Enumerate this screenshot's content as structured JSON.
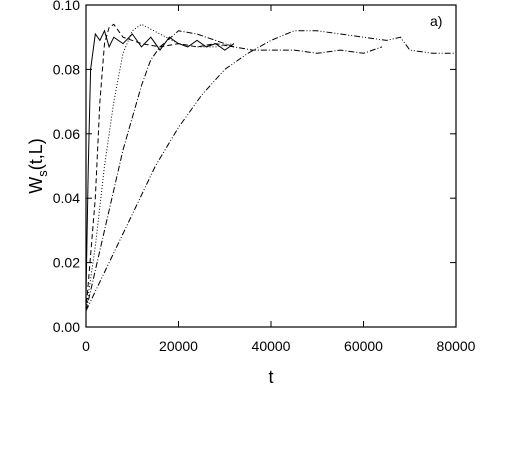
{
  "chart_data": {
    "type": "line",
    "annotation": "a)",
    "xlabel": "t",
    "ylabel": {
      "base": "W",
      "subscript": "s",
      "suffix": "(t,L)"
    },
    "xlim": [
      0,
      80000
    ],
    "xticks": [
      0,
      20000,
      40000,
      60000,
      80000
    ],
    "ylim": [
      0,
      0.1
    ],
    "yticks": [
      {
        "value": 0,
        "label": "0.00"
      },
      {
        "value": 0.02,
        "label": "0.02"
      },
      {
        "value": 0.04,
        "label": "0.04"
      },
      {
        "value": 0.06,
        "label": "0.06"
      },
      {
        "value": 0.08,
        "label": "0.08"
      },
      {
        "value": 0.1,
        "label": "0.10"
      }
    ],
    "series": [
      {
        "color": "#000000",
        "dash": "solid",
        "x": [
          0,
          500,
          1000,
          2000,
          3000,
          4000,
          5000,
          6000,
          8000,
          10000,
          12000,
          14000,
          16000,
          18000,
          20000,
          22000,
          24000,
          26000,
          28000,
          30000,
          32000
        ],
        "values": [
          0.01,
          0.05,
          0.08,
          0.091,
          0.089,
          0.092,
          0.087,
          0.09,
          0.088,
          0.091,
          0.087,
          0.09,
          0.086,
          0.09,
          0.088,
          0.087,
          0.089,
          0.087,
          0.088,
          0.086,
          0.088
        ]
      },
      {
        "color": "#000000",
        "dash": "dashed",
        "x": [
          0,
          2000,
          3000,
          4000,
          5000,
          6000,
          8000,
          12000,
          16000,
          20000,
          24000,
          28000,
          32000
        ],
        "values": [
          0.005,
          0.04,
          0.07,
          0.088,
          0.093,
          0.094,
          0.09,
          0.088,
          0.087,
          0.088,
          0.087,
          0.088,
          0.087
        ]
      },
      {
        "color": "#000000",
        "dash": "dotted",
        "x": [
          0,
          2000,
          4000,
          6000,
          8000,
          10000,
          12000,
          16000,
          20000,
          24000,
          28000,
          32000
        ],
        "values": [
          0.005,
          0.025,
          0.05,
          0.07,
          0.085,
          0.092,
          0.094,
          0.091,
          0.088,
          0.087,
          0.087,
          0.088
        ]
      },
      {
        "color": "#000000",
        "dash": "dashdot",
        "x": [
          0,
          4000,
          8000,
          12000,
          14000,
          16000,
          20000,
          24000,
          28000,
          32000,
          36000,
          40000,
          45000,
          50000,
          55000,
          60000,
          64000
        ],
        "values": [
          0.005,
          0.03,
          0.055,
          0.075,
          0.083,
          0.087,
          0.092,
          0.091,
          0.089,
          0.087,
          0.086,
          0.086,
          0.086,
          0.085,
          0.086,
          0.085,
          0.087
        ]
      },
      {
        "color": "#000000",
        "dash": "dashdotdot",
        "x": [
          0,
          5000,
          10000,
          15000,
          20000,
          25000,
          30000,
          35000,
          40000,
          45000,
          50000,
          55000,
          60000,
          65000,
          68000,
          70000,
          75000,
          80000
        ],
        "values": [
          0.005,
          0.02,
          0.035,
          0.05,
          0.062,
          0.072,
          0.08,
          0.085,
          0.089,
          0.092,
          0.092,
          0.091,
          0.09,
          0.089,
          0.09,
          0.086,
          0.085,
          0.085
        ]
      }
    ]
  }
}
